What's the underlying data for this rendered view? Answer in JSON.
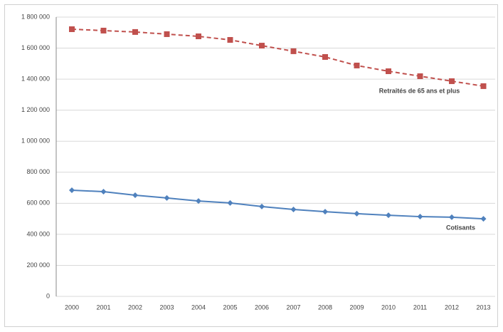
{
  "chart_data": {
    "type": "line",
    "categories": [
      "2000",
      "2001",
      "2002",
      "2003",
      "2004",
      "2005",
      "2006",
      "2007",
      "2008",
      "2009",
      "2010",
      "2011",
      "2012",
      "2013"
    ],
    "series": [
      {
        "name": "Retraités de 65 ans et plus",
        "color": "#c0504d",
        "dashed": true,
        "marker": "square",
        "values": [
          1722000,
          1713000,
          1704000,
          1690000,
          1676000,
          1653000,
          1616000,
          1580000,
          1543000,
          1488000,
          1451000,
          1419000,
          1387000,
          1355000
        ]
      },
      {
        "name": "Cotisants",
        "color": "#4f81bd",
        "dashed": false,
        "marker": "diamond",
        "values": [
          684000,
          675000,
          652000,
          634000,
          615000,
          602000,
          579000,
          560000,
          546000,
          533000,
          523000,
          514000,
          510000,
          500000
        ]
      }
    ],
    "ylim": [
      0,
      1800000
    ],
    "yticks": [
      0,
      {
        "value": 200000,
        "label": "200 000"
      },
      {
        "value": 400000,
        "label": "400 000"
      },
      {
        "value": 600000,
        "label": "600 000"
      },
      {
        "value": 800000,
        "label": "800 000"
      },
      {
        "value": 1000000,
        "label": "1 000 000"
      },
      {
        "value": 1200000,
        "label": "1 200 000"
      },
      {
        "value": 1400000,
        "label": "1 400 000"
      },
      {
        "value": 1600000,
        "label": "1 600 000"
      },
      {
        "value": 1800000,
        "label": "1 800 000"
      }
    ],
    "grid": true
  }
}
